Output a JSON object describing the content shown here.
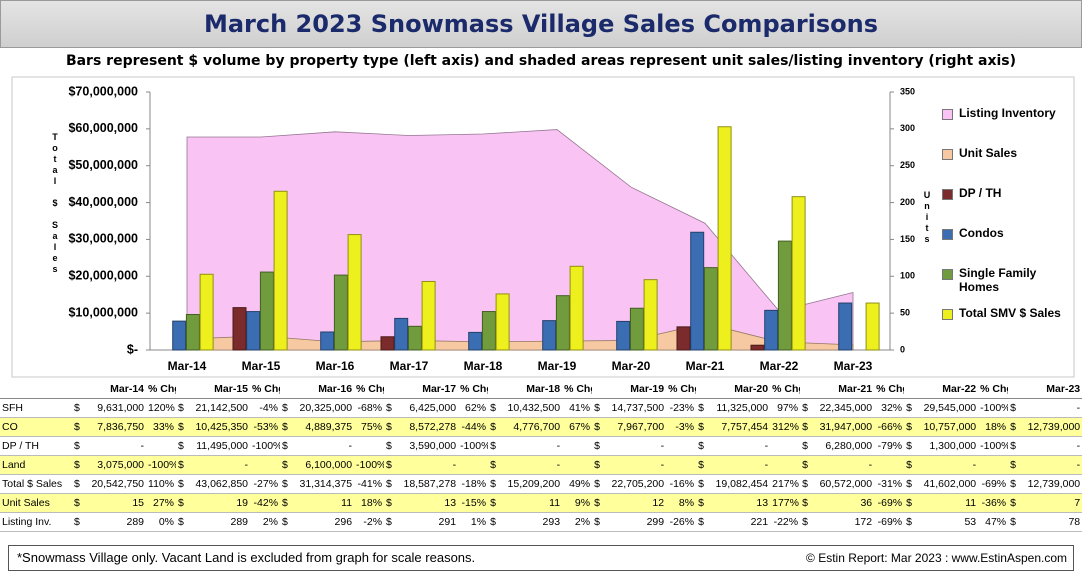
{
  "chart_data": {
    "type": "bar",
    "title": "March 2023 Snowmass Village Sales Comparisons",
    "subtitle": "Bars represent $ volume by property type (left axis) and shaded areas represent unit sales/listing inventory (right axis)",
    "y_label": "Total $ Sales",
    "y2_label": "Units",
    "categories": [
      "Mar-14",
      "Mar-15",
      "Mar-16",
      "Mar-17",
      "Mar-18",
      "Mar-19",
      "Mar-20",
      "Mar-21",
      "Mar-22",
      "Mar-23"
    ],
    "ylim": [
      0,
      70000000
    ],
    "yticks": [
      {
        "value": 0,
        "label": "$-"
      },
      {
        "value": 10000000,
        "label": "$10,000,000"
      },
      {
        "value": 20000000,
        "label": "$20,000,000"
      },
      {
        "value": 30000000,
        "label": "$30,000,000"
      },
      {
        "value": 40000000,
        "label": "$40,000,000"
      },
      {
        "value": 50000000,
        "label": "$50,000,000"
      },
      {
        "value": 60000000,
        "label": "$60,000,000"
      },
      {
        "value": 70000000,
        "label": "$70,000,000"
      }
    ],
    "y2lim": [
      0,
      350
    ],
    "y2ticks": [
      0,
      50,
      100,
      150,
      200,
      250,
      300,
      350
    ],
    "grid": false,
    "series": [
      {
        "name": "Listing Inventory",
        "type": "area",
        "axis": "y2",
        "color": "#f9c4f3",
        "values": [
          289,
          289,
          296,
          291,
          293,
          299,
          221,
          172,
          53,
          78
        ]
      },
      {
        "name": "Unit Sales",
        "type": "area",
        "axis": "y2",
        "color": "#f7c9a2",
        "values": [
          15,
          19,
          11,
          13,
          11,
          12,
          13,
          36,
          11,
          7
        ]
      },
      {
        "name": "DP / TH",
        "type": "bar",
        "color": "#7b2b2b",
        "values": [
          null,
          11495000,
          null,
          3590000,
          null,
          null,
          null,
          6280000,
          1300000,
          null
        ]
      },
      {
        "name": "Condos",
        "type": "bar",
        "color": "#3b6db3",
        "values": [
          7836750,
          10425350,
          4889375,
          8572278,
          4776700,
          7967700,
          7757454,
          31947000,
          10757000,
          12739000
        ]
      },
      {
        "name": "Single Family Homes",
        "type": "bar",
        "color": "#719c3e",
        "values": [
          9631000,
          21142500,
          20325000,
          6425000,
          10432500,
          14737500,
          11325000,
          22345000,
          29545000,
          null
        ]
      },
      {
        "name": "Total SMV $ Sales",
        "type": "bar",
        "color": "#eef01e",
        "values": [
          20542750,
          43062850,
          31314375,
          18587278,
          15209200,
          22705200,
          19082454,
          60572000,
          41602000,
          12739000
        ]
      }
    ]
  },
  "table": {
    "currency": "$",
    "header": [
      "Mar-14",
      "% Chg",
      "Mar-15",
      "% Chg",
      "Mar-16",
      "% Chg",
      "Mar-17",
      "% Chg",
      "Mar-18",
      "% Chg",
      "Mar-19",
      "% Chg",
      "Mar-20",
      "% Chg",
      "Mar-21",
      "% Chg",
      "Mar-22",
      "% Chg",
      "Mar-23"
    ],
    "rows": [
      {
        "label": "SFH",
        "cells": [
          "9,631,000",
          "120%",
          "21,142,500",
          "-4%",
          "20,325,000",
          "-68%",
          "6,425,000",
          "62%",
          "10,432,500",
          "41%",
          "14,737,500",
          "-23%",
          "11,325,000",
          "97%",
          "22,345,000",
          "32%",
          "29,545,000",
          "-100%",
          "-"
        ]
      },
      {
        "label": "CO",
        "cells": [
          "7,836,750",
          "33%",
          "10,425,350",
          "-53%",
          "4,889,375",
          "75%",
          "8,572,278",
          "-44%",
          "4,776,700",
          "67%",
          "7,967,700",
          "-3%",
          "7,757,454",
          "312%",
          "31,947,000",
          "-66%",
          "10,757,000",
          "18%",
          "12,739,000"
        ]
      },
      {
        "label": "DP / TH",
        "cells": [
          "-",
          null,
          "11,495,000",
          "-100%",
          "-",
          null,
          "3,590,000",
          "-100%",
          "-",
          null,
          "-",
          null,
          "-",
          null,
          "6,280,000",
          "-79%",
          "1,300,000",
          "-100%",
          "-"
        ]
      },
      {
        "label": "Land",
        "cells": [
          "3,075,000",
          "-100%",
          "-",
          null,
          "6,100,000",
          "-100%",
          "-",
          null,
          "-",
          null,
          "-",
          null,
          "-",
          null,
          "-",
          null,
          "-",
          null,
          "-"
        ]
      },
      {
        "label": "Total $ Sales",
        "cells": [
          "20,542,750",
          "110%",
          "43,062,850",
          "-27%",
          "31,314,375",
          "-41%",
          "18,587,278",
          "-18%",
          "15,209,200",
          "49%",
          "22,705,200",
          "-16%",
          "19,082,454",
          "217%",
          "60,572,000",
          "-31%",
          "41,602,000",
          "-69%",
          "12,739,000"
        ]
      },
      {
        "label": "Unit Sales",
        "cells": [
          "15",
          "27%",
          "19",
          "-42%",
          "11",
          "18%",
          "13",
          "-15%",
          "11",
          "9%",
          "12",
          "8%",
          "13",
          "177%",
          "36",
          "-69%",
          "11",
          "-36%",
          "7"
        ]
      },
      {
        "label": "Listing Inv.",
        "cells": [
          "289",
          "0%",
          "289",
          "2%",
          "296",
          "-2%",
          "291",
          "1%",
          "293",
          "2%",
          "299",
          "-26%",
          "221",
          "-22%",
          "172",
          "-69%",
          "53",
          "47%",
          "78"
        ]
      }
    ]
  },
  "footer": {
    "note": "*Snowmass Village only. Vacant Land is excluded from graph for scale reasons.",
    "credit": "© Estin Report: Mar 2023 : www.EstinAspen.com"
  }
}
